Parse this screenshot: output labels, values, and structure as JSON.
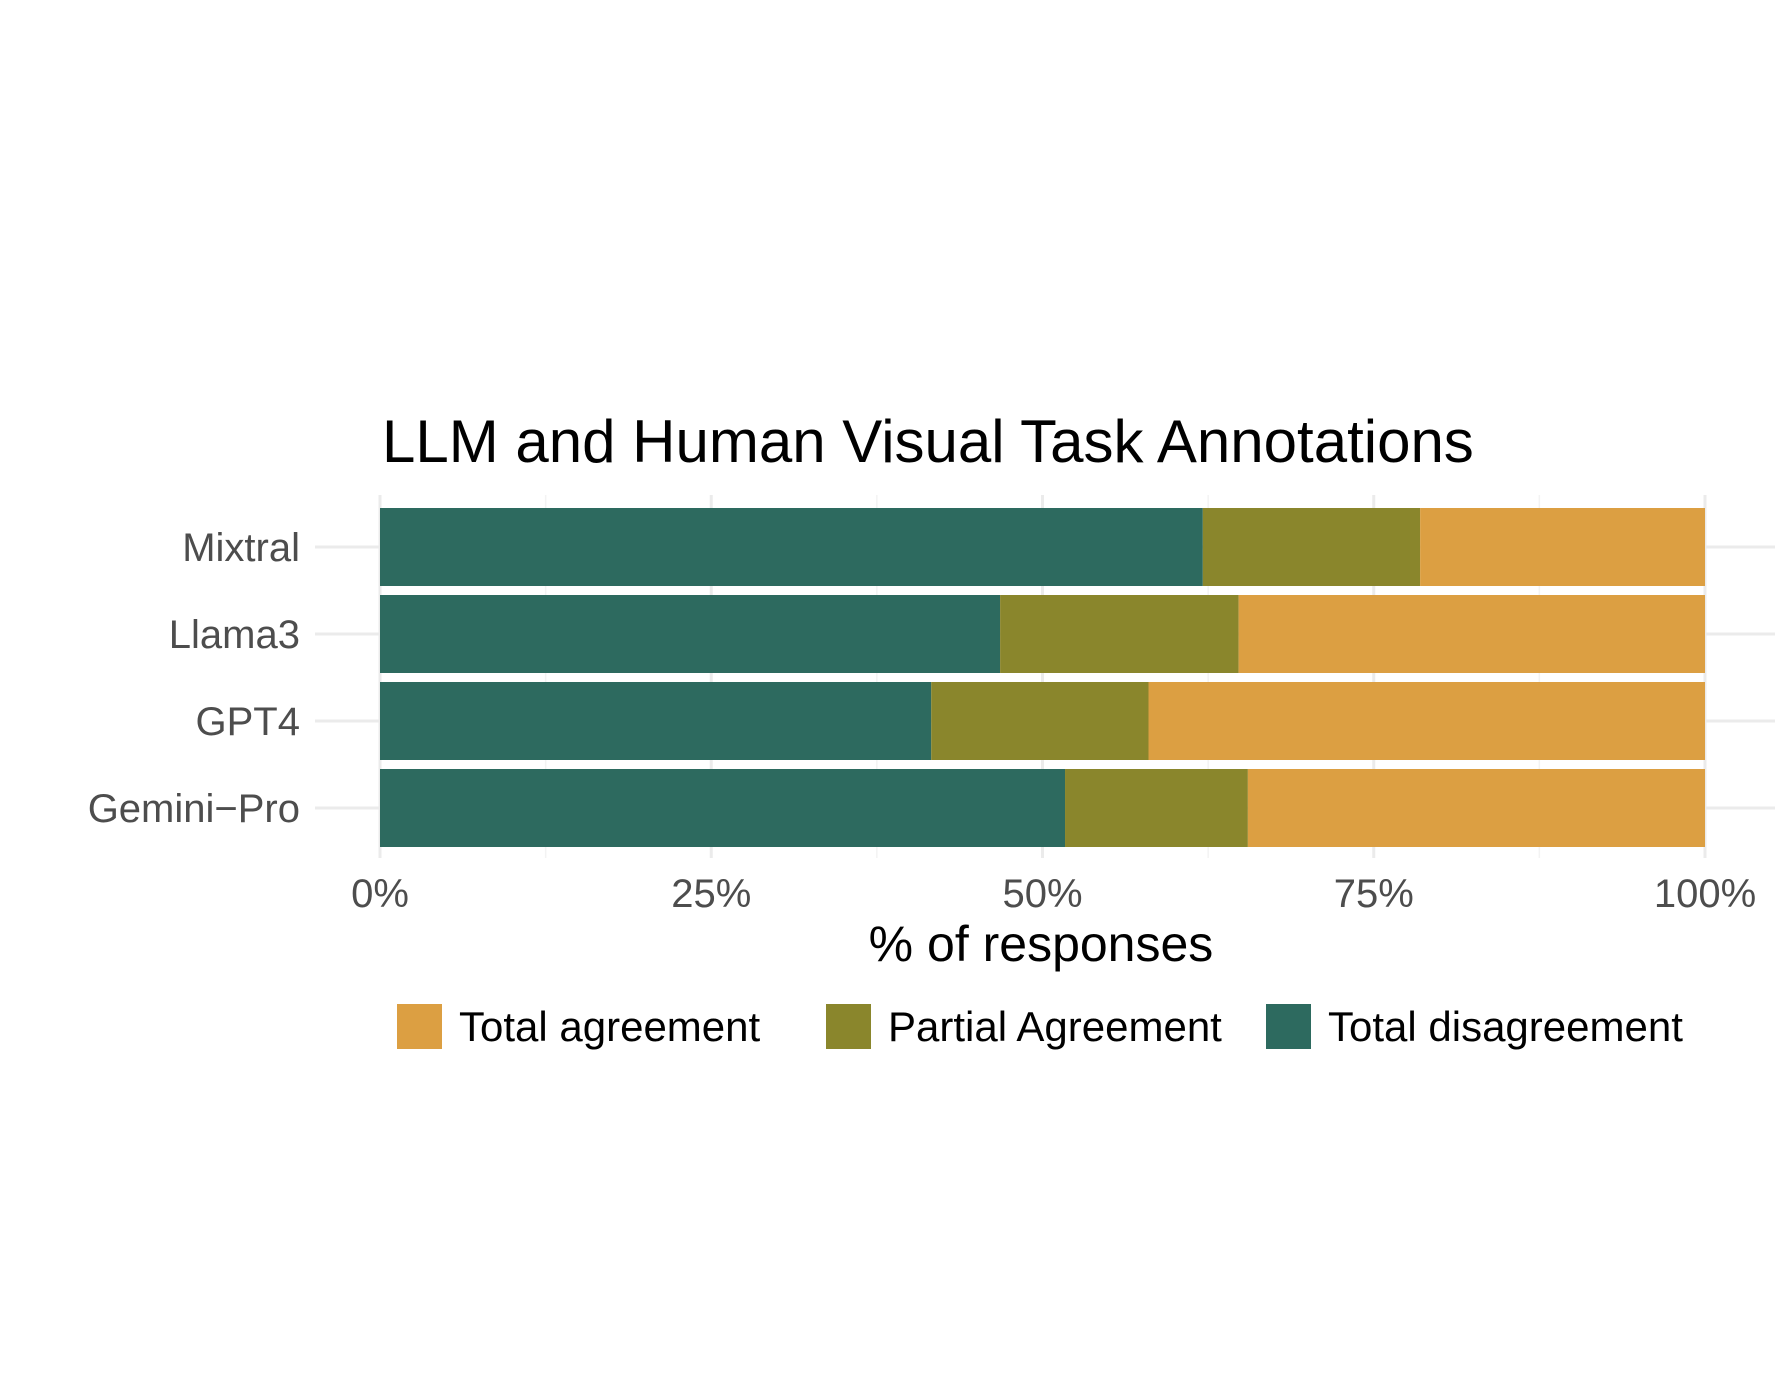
{
  "chart_data": {
    "type": "bar",
    "orientation": "horizontal",
    "stacked": true,
    "title": "LLM and Human Visual Task Annotations",
    "xlabel": "% of responses",
    "ylabel": "",
    "categories": [
      "Mixtral",
      "Llama3",
      "GPT4",
      "Gemini−Pro"
    ],
    "xlim": [
      0,
      100
    ],
    "x_ticks": [
      {
        "value": 0,
        "label": "0%"
      },
      {
        "value": 25,
        "label": "25%"
      },
      {
        "value": 50,
        "label": "50%"
      },
      {
        "value": 75,
        "label": "75%"
      },
      {
        "value": 100,
        "label": "100%"
      }
    ],
    "series": [
      {
        "name": "Total disagreement",
        "color": "#2d6a5f",
        "values": [
          62.1,
          46.8,
          41.6,
          51.7
        ]
      },
      {
        "name": "Partial Agreement",
        "color": "#8a862c",
        "values": [
          16.4,
          18.0,
          16.4,
          13.8
        ]
      },
      {
        "name": "Total agreement",
        "color": "#dc9f42",
        "values": [
          21.5,
          35.2,
          42.0,
          34.5
        ]
      }
    ],
    "legend": {
      "position": "bottom",
      "order": [
        "Total agreement",
        "Partial Agreement",
        "Total disagreement"
      ]
    },
    "grid": true
  }
}
